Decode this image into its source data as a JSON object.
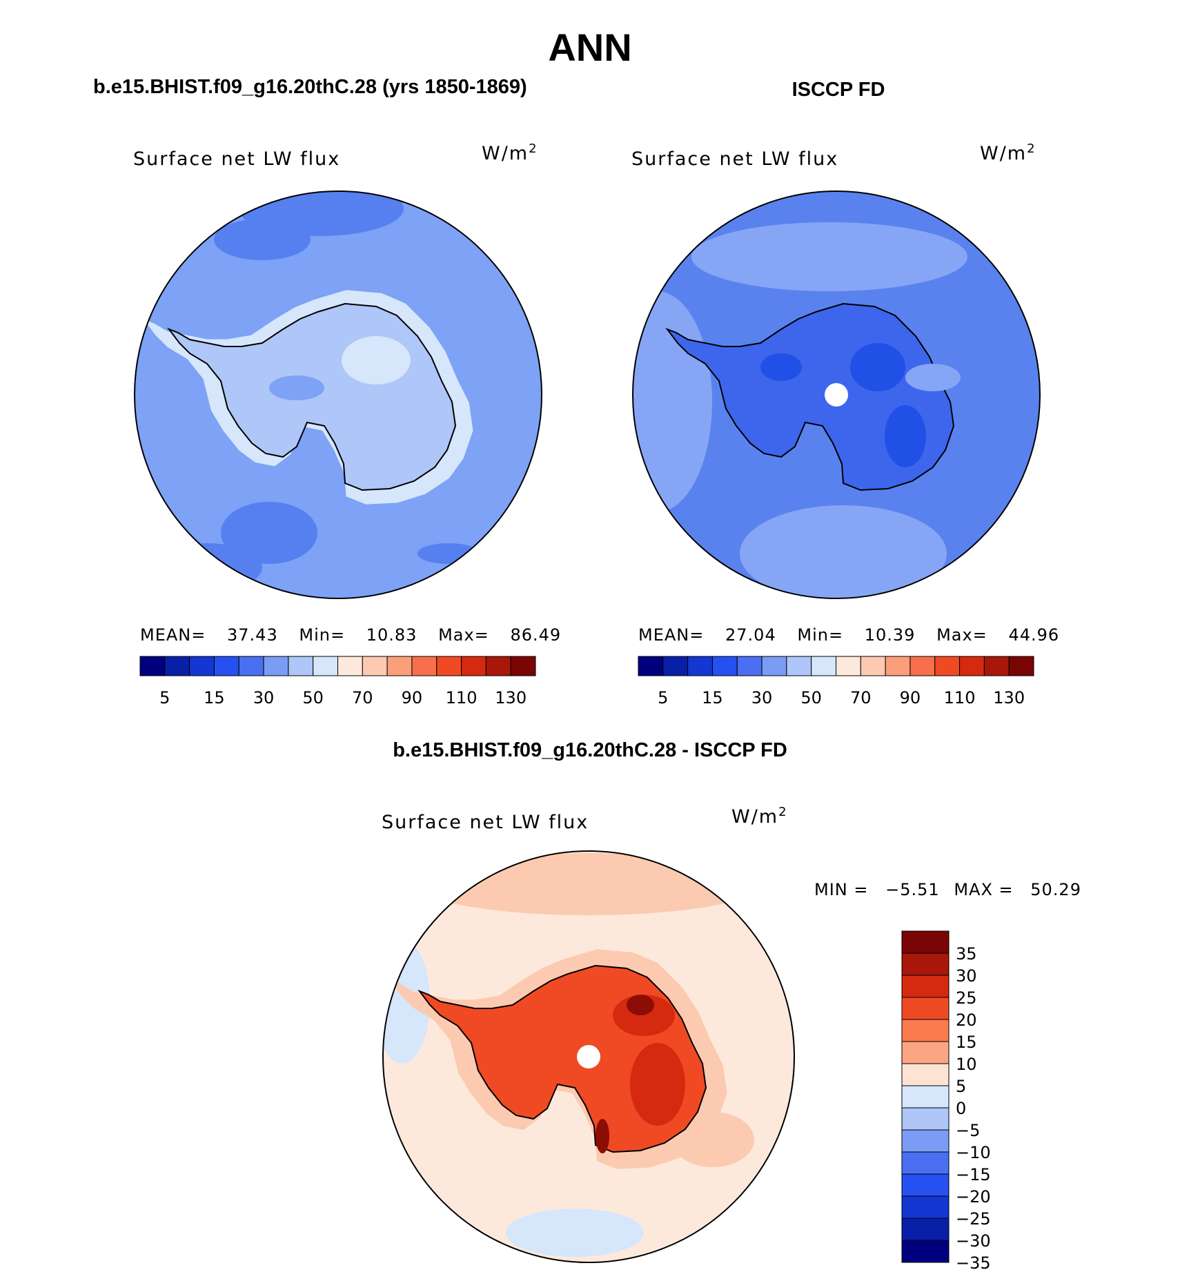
{
  "page": {
    "title": "ANN"
  },
  "panels": {
    "model": {
      "heading": "b.e15.BHIST.f09_g16.20thC.28 (yrs 1850-1869)",
      "variable": "Surface net LW flux",
      "units": "W/m",
      "units_sup": "2",
      "stats": {
        "mean_label": "MEAN=",
        "mean": "37.43",
        "min_label": "Min=",
        "min": "10.83",
        "max_label": "Max=",
        "max": "86.49"
      }
    },
    "obs": {
      "heading": "ISCCP FD",
      "variable": "Surface net LW flux",
      "units": "W/m",
      "units_sup": "2",
      "stats": {
        "mean_label": "MEAN=",
        "mean": "27.04",
        "min_label": "Min=",
        "min": "10.39",
        "max_label": "Max=",
        "max": "44.96"
      }
    },
    "diff": {
      "heading": "b.e15.BHIST.f09_g16.20thC.28 - ISCCP FD",
      "variable": "Surface net LW flux",
      "units": "W/m",
      "units_sup": "2",
      "stats": {
        "min_label": "MIN =",
        "min": "−5.51",
        "max_label": "MAX =",
        "max": "50.29"
      }
    }
  },
  "colorbars": {
    "abs": {
      "colors": [
        "#00007f",
        "#0a1fa8",
        "#1436d2",
        "#2651f0",
        "#4a6ff2",
        "#7b9cf5",
        "#aec6f8",
        "#d6e6fb",
        "#fde9dc",
        "#fccab1",
        "#fb9f7b",
        "#f86f4b",
        "#f04a24",
        "#d52a10",
        "#a8170a",
        "#7a0505"
      ],
      "tick_labels": [
        "5",
        "15",
        "30",
        "50",
        "70",
        "90",
        "110",
        "130"
      ]
    },
    "diff": {
      "colors": [
        "#7a0505",
        "#a8170a",
        "#d52a10",
        "#f04a24",
        "#fb7b4e",
        "#fca583",
        "#fde3d3",
        "#d6e6fb",
        "#aec6f8",
        "#7b9cf5",
        "#4a6ff2",
        "#2651f0",
        "#1436d2",
        "#0a1fa8",
        "#00007f"
      ],
      "tick_labels": [
        "35",
        "30",
        "25",
        "20",
        "15",
        "10",
        "5",
        "0",
        "−5",
        "−10",
        "−15",
        "−20",
        "−25",
        "−30",
        "−35"
      ]
    }
  },
  "map_colors": {
    "model_ocean": "#7da2f6",
    "model_dark": "#5680f0",
    "model_land": "#aec6f8",
    "model_land_light": "#d6e6fb",
    "obs_ocean": "#5a82ef",
    "obs_light": "#86a6f5",
    "obs_land": "#3d66ec",
    "obs_dark": "#2150e6",
    "diff_bg": "#fde9dc",
    "diff_light": "#fccab1",
    "diff_blue": "#d6e6fb",
    "diff_land": "#f04a24",
    "diff_mid": "#d52a10",
    "diff_dark": "#8c0d06"
  }
}
